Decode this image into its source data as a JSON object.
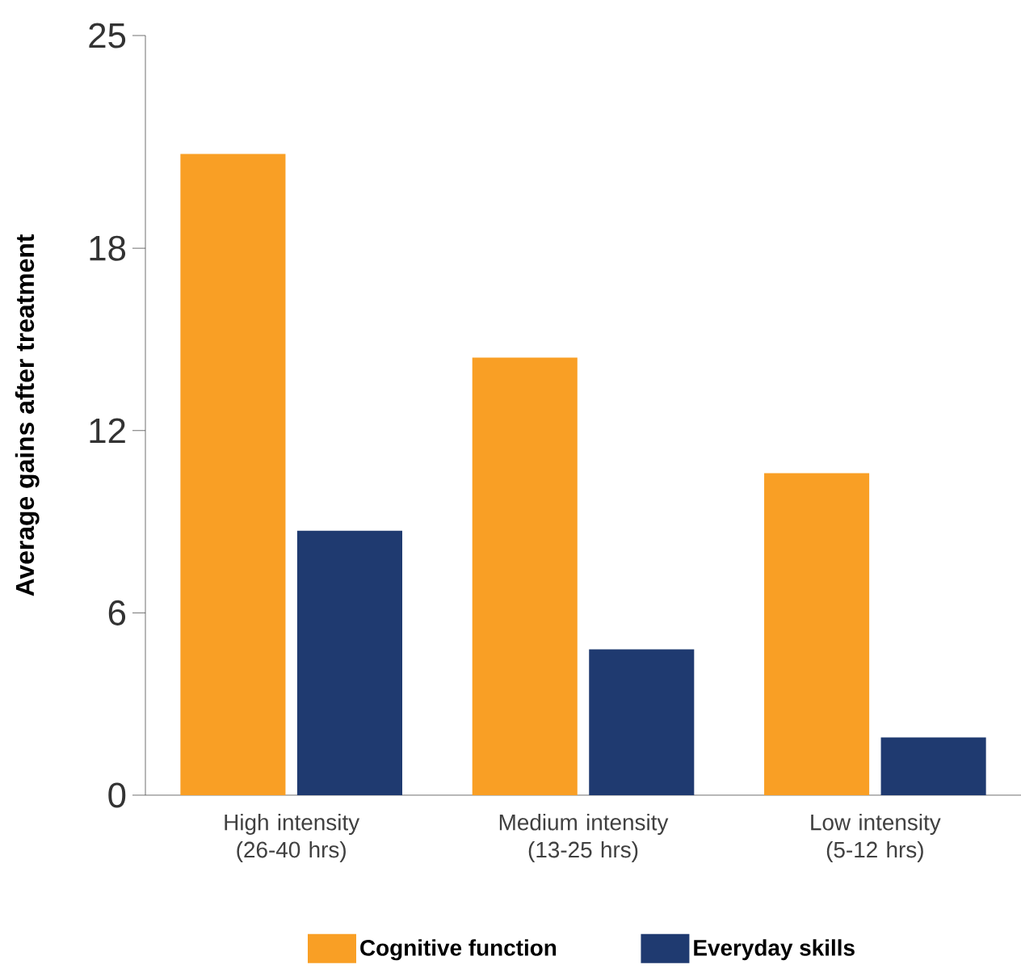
{
  "chart_data": {
    "type": "bar",
    "ylabel": "Average gains after treatment",
    "categories": [
      "High intensity (26-40 hrs)",
      "Medium intensity (13-25 hrs)",
      "Low intensity (5-12 hrs)"
    ],
    "series": [
      {
        "name": "Cognitive function",
        "color": "#f99f25",
        "values": [
          21.1,
          14.4,
          10.6
        ]
      },
      {
        "name": "Everyday skills",
        "color": "#1f3a70",
        "values": [
          8.7,
          4.8,
          1.9
        ]
      }
    ],
    "ylim": [
      0,
      25
    ],
    "yticks": [
      0,
      6,
      12,
      18,
      25
    ],
    "legend": "bottom",
    "grid": false
  }
}
